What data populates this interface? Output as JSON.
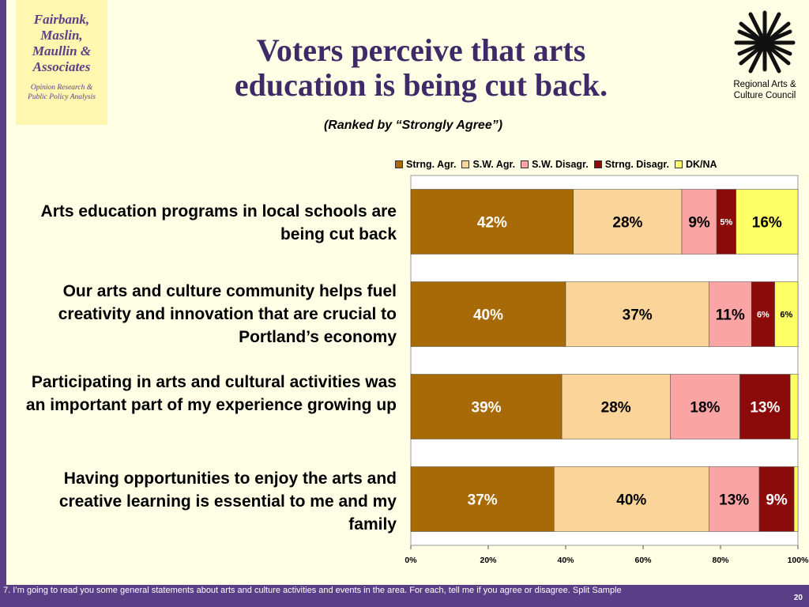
{
  "logo": {
    "firm": "Fairbank,\nMaslin,\nMaullin &\nAssociates",
    "tagline": "Opinion Research &\nPublic Policy Analysis"
  },
  "title": "Voters perceive that arts\neducation is being cut back.",
  "subtitle": "(Ranked by “Strongly Agree”)",
  "sponsor": {
    "name": "Regional Arts &\nCulture Council"
  },
  "footnote": "7. I’m going to read you some general statements about arts and culture activities and events in the area.  For each, tell me if you agree or disagree. Split Sample",
  "page_number": "20",
  "chart_data": {
    "type": "bar",
    "orientation": "horizontal",
    "stacked": true,
    "categories": [
      "Arts education programs in local schools are being cut back",
      "Our arts and culture community helps fuel creativity and innovation that are crucial to Portland’s economy",
      "Participating in arts and cultural activities was an important part of my experience growing up",
      "Having opportunities to enjoy the arts and creative learning is essential to me and my family"
    ],
    "series": [
      {
        "name": "Strng. Agr.",
        "color": "#a86a06",
        "label_color": "#ffffff",
        "values": [
          42,
          40,
          39,
          37
        ],
        "labels": [
          "42%",
          "40%",
          "39%",
          "37%"
        ]
      },
      {
        "name": "S.W. Agr.",
        "color": "#fbd49a",
        "label_color": "#000000",
        "values": [
          28,
          37,
          28,
          40
        ],
        "labels": [
          "28%",
          "37%",
          "28%",
          "40%"
        ]
      },
      {
        "name": "S.W. Disagr.",
        "color": "#fba4a4",
        "label_color": "#000000",
        "values": [
          9,
          11,
          18,
          13
        ],
        "labels": [
          "9%",
          "11%",
          "18%",
          "13%"
        ]
      },
      {
        "name": "Strng. Disagr.",
        "color": "#8b0a0a",
        "label_color": "#ffffff",
        "values": [
          5,
          6,
          13,
          9
        ],
        "labels": [
          "5%",
          "6%",
          "13%",
          "9%"
        ]
      },
      {
        "name": "DK/NA",
        "color": "#ffff66",
        "label_color": "#000000",
        "values": [
          16,
          6,
          2,
          1
        ],
        "labels": [
          "16%",
          "6%",
          "",
          ""
        ]
      }
    ],
    "x_ticks": [
      "0%",
      "20%",
      "40%",
      "60%",
      "80%",
      "100%"
    ],
    "xlim": [
      0,
      100
    ],
    "legend": "top"
  }
}
